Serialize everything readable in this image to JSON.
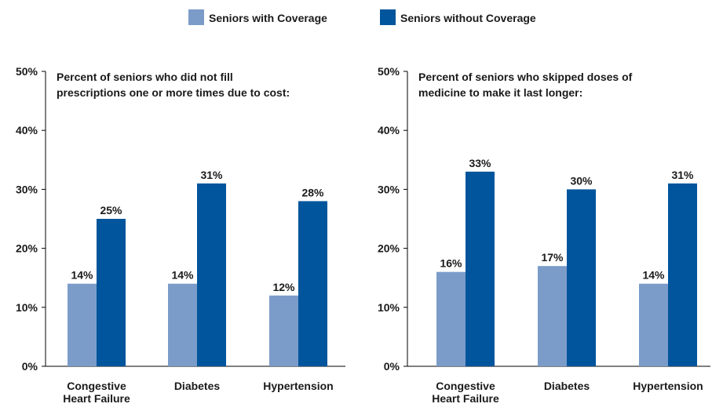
{
  "legend": {
    "items": [
      {
        "label": "Seniors with Coverage",
        "color": "#7b9cc9"
      },
      {
        "label": "Seniors without Coverage",
        "color": "#00559c"
      }
    ]
  },
  "chart_data": [
    {
      "type": "bar",
      "title": "Percent of seniors who did not fill prescriptions one or more times due to cost:",
      "title_lines": [
        "Percent of seniors who did not fill",
        "prescriptions one or more times due to cost:"
      ],
      "categories": [
        "Congestive Heart Failure",
        "Diabetes",
        "Hypertension"
      ],
      "category_lines": [
        [
          "Congestive",
          "Heart Failure"
        ],
        [
          "Diabetes"
        ],
        [
          "Hypertension"
        ]
      ],
      "series": [
        {
          "name": "Seniors with Coverage",
          "values": [
            14,
            14,
            12
          ],
          "color": "#7b9cc9"
        },
        {
          "name": "Seniors without Coverage",
          "values": [
            25,
            31,
            28
          ],
          "color": "#00559c"
        }
      ],
      "yticks": [
        "0%",
        "10%",
        "20%",
        "30%",
        "40%",
        "50%"
      ],
      "ylim": [
        0,
        50
      ],
      "value_suffix": "%",
      "legend": "top-center",
      "grid": false
    },
    {
      "type": "bar",
      "title": "Percent of seniors who skipped doses of medicine to make it last longer:",
      "title_lines": [
        "Percent of seniors who skipped doses of",
        "medicine to make it last longer:"
      ],
      "categories": [
        "Congestive Heart Failure",
        "Diabetes",
        "Hypertension"
      ],
      "category_lines": [
        [
          "Congestive",
          "Heart Failure"
        ],
        [
          "Diabetes"
        ],
        [
          "Hypertension"
        ]
      ],
      "series": [
        {
          "name": "Seniors with Coverage",
          "values": [
            16,
            17,
            14
          ],
          "color": "#7b9cc9"
        },
        {
          "name": "Seniors without Coverage",
          "values": [
            33,
            30,
            31
          ],
          "color": "#00559c"
        }
      ],
      "yticks": [
        "0%",
        "10%",
        "20%",
        "30%",
        "40%",
        "50%"
      ],
      "ylim": [
        0,
        50
      ],
      "value_suffix": "%",
      "legend": "top-center",
      "grid": false
    }
  ]
}
